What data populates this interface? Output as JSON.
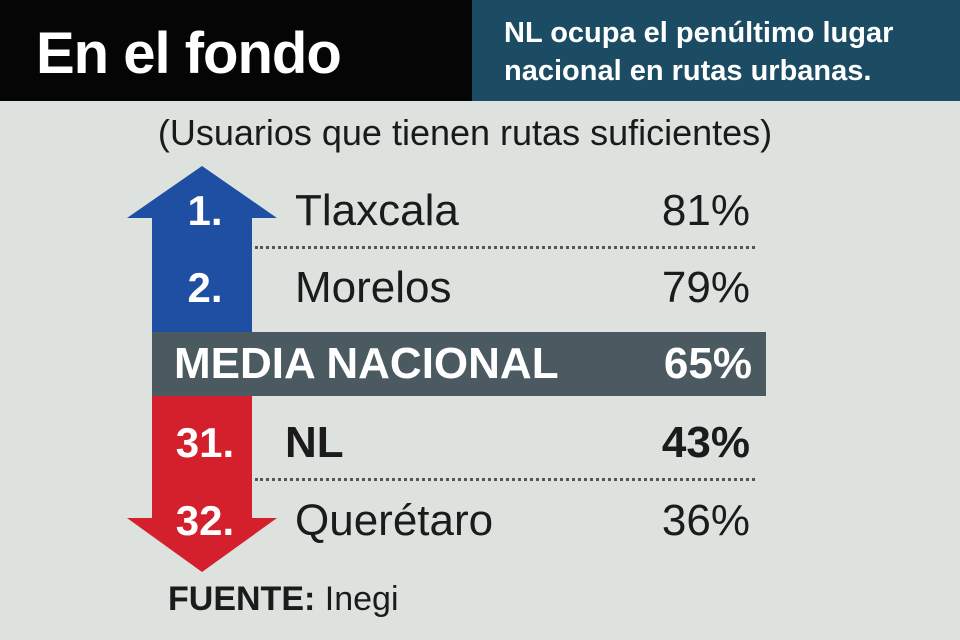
{
  "header": {
    "title": "En el fondo",
    "subtitle": "NL ocupa el penúltimo lugar nacional en rutas urbanas."
  },
  "caption": "(Usuarios que tienen rutas suficientes)",
  "rows_top": [
    {
      "rank": "1.",
      "state": "Tlaxcala",
      "value_label": "81%"
    },
    {
      "rank": "2.",
      "state": "Morelos",
      "value_label": "79%"
    }
  ],
  "media": {
    "label": "MEDIA NACIONAL",
    "value_label": "65%"
  },
  "rows_bottom": [
    {
      "rank": "31.",
      "state": "NL",
      "value_label": "43%"
    },
    {
      "rank": "32.",
      "state": "Querétaro",
      "value_label": "36%"
    }
  ],
  "source": {
    "label": "FUENTE:",
    "value": "Inegi"
  },
  "colors": {
    "up_arrow": "#1f4fa3",
    "down_arrow": "#d41f2c",
    "media_bar": "#4b5a61",
    "header_left": "#050505",
    "header_right": "#1b4c63",
    "background": "#dde2de"
  },
  "chart_data": {
    "type": "table",
    "title": "En el fondo",
    "subtitle": "NL ocupa el penúltimo lugar nacional en rutas urbanas.",
    "caption": "(Usuarios que tienen rutas suficientes)",
    "columns": [
      "rank",
      "state",
      "percent"
    ],
    "rows": [
      {
        "rank": 1,
        "state": "Tlaxcala",
        "percent": 81
      },
      {
        "rank": 2,
        "state": "Morelos",
        "percent": 79
      },
      {
        "rank": null,
        "state": "MEDIA NACIONAL",
        "percent": 65
      },
      {
        "rank": 31,
        "state": "NL",
        "percent": 43
      },
      {
        "rank": 32,
        "state": "Querétaro",
        "percent": 36
      }
    ],
    "source": "Inegi"
  }
}
